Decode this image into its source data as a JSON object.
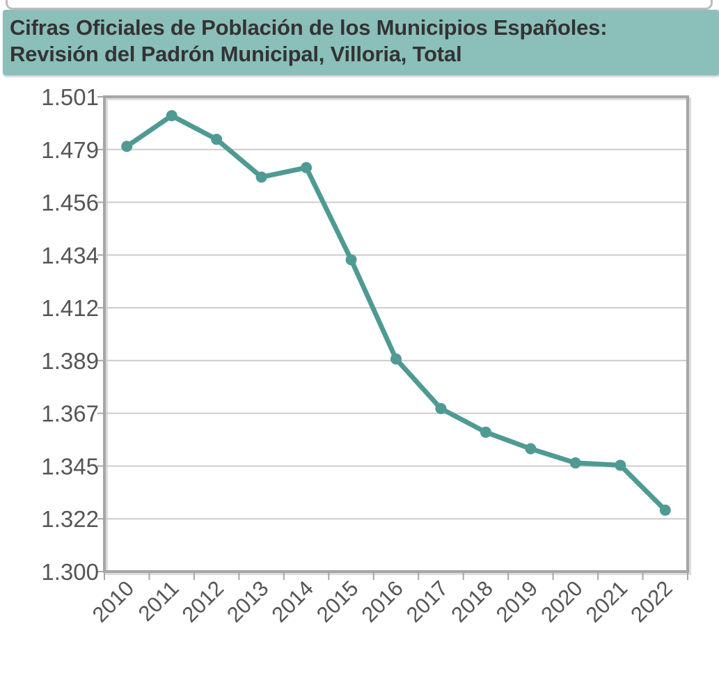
{
  "chart_data": {
    "type": "line",
    "title": "Cifras Oficiales de Población de los Municipios Españoles:",
    "subtitle": "Revisión del Padrón Municipal, Villoria, Total",
    "xlabel": "",
    "ylabel": "",
    "categories": [
      "2010",
      "2011",
      "2012",
      "2013",
      "2014",
      "2015",
      "2016",
      "2017",
      "2018",
      "2019",
      "2020",
      "2021",
      "2022"
    ],
    "series": [
      {
        "name": "Total",
        "values": [
          1480,
          1493,
          1483,
          1467,
          1471,
          1432,
          1390,
          1369,
          1359,
          1352,
          1346,
          1345,
          1326
        ]
      }
    ],
    "y_ticks": [
      "1.300",
      "1.322",
      "1.345",
      "1.367",
      "1.389",
      "1.412",
      "1.434",
      "1.456",
      "1.479",
      "1.501"
    ],
    "ylim": [
      1300,
      1501
    ],
    "grid": true,
    "legend": "none",
    "line_color": "#4f9a93",
    "grid_color": "#cccccc",
    "frame_color": "#a6a6a6"
  }
}
